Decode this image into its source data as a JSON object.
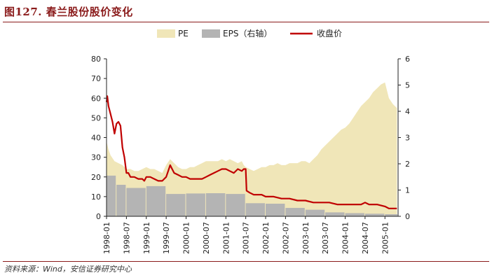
{
  "figure": {
    "title": "图127. 春兰股份股价变化",
    "source": "资料来源：Wind，安信证券研究中心"
  },
  "chart_data": {
    "type": "area",
    "title": "",
    "legend": {
      "placement": "top",
      "entries": [
        {
          "key": "pe",
          "label": "PE",
          "color": "#f0e6b8",
          "kind": "area"
        },
        {
          "key": "eps",
          "label": "EPS（右轴）",
          "color": "#b4b4b4",
          "kind": "bar"
        },
        {
          "key": "price",
          "label": "收盘价",
          "color": "#c00000",
          "kind": "line"
        }
      ]
    },
    "x_ticks": [
      "1998-01",
      "1998-07",
      "1999-01",
      "1999-07",
      "2000-01",
      "2000-07",
      "2001-01",
      "2001-07",
      "2002-01",
      "2002-07",
      "2003-01",
      "2003-07",
      "2004-01",
      "2004-07",
      "2005-01"
    ],
    "x_range": [
      1998.0,
      2005.33
    ],
    "left_axis": {
      "range": [
        0,
        80
      ],
      "ticks": [
        0,
        10,
        20,
        30,
        40,
        50,
        60,
        70,
        80
      ]
    },
    "right_axis": {
      "range": [
        0,
        6
      ],
      "ticks": [
        0,
        1,
        2,
        3,
        4,
        5,
        6
      ]
    },
    "series": [
      {
        "name": "PE",
        "axis": "left",
        "x": [
          1998.0,
          1998.05,
          1998.1,
          1998.2,
          1998.3,
          1998.4,
          1998.5,
          1998.6,
          1998.7,
          1998.8,
          1998.9,
          1999.0,
          1999.1,
          1999.2,
          1999.3,
          1999.4,
          1999.5,
          1999.6,
          1999.7,
          1999.8,
          1999.9,
          2000.0,
          2000.1,
          2000.2,
          2000.3,
          2000.4,
          2000.5,
          2000.6,
          2000.7,
          2000.8,
          2000.9,
          2001.0,
          2001.1,
          2001.2,
          2001.3,
          2001.4,
          2001.45,
          2001.5,
          2001.6,
          2001.7,
          2001.8,
          2001.9,
          2002.0,
          2002.1,
          2002.2,
          2002.3,
          2002.4,
          2002.5,
          2002.6,
          2002.7,
          2002.8,
          2002.9,
          2003.0,
          2003.1,
          2003.2,
          2003.3,
          2003.4,
          2003.5,
          2003.6,
          2003.7,
          2003.8,
          2003.9,
          2004.0,
          2004.1,
          2004.2,
          2004.3,
          2004.4,
          2004.5,
          2004.6,
          2004.7,
          2004.8,
          2004.9,
          2005.0,
          2005.1,
          2005.2,
          2005.3
        ],
        "values": [
          38,
          34,
          31,
          28,
          27,
          26,
          24,
          24,
          23,
          23,
          24,
          25,
          24,
          24,
          23,
          22,
          26,
          29,
          27,
          25,
          24,
          24,
          25,
          25,
          26,
          27,
          28,
          28,
          28,
          28,
          29,
          28,
          29,
          28,
          27,
          28,
          26,
          25,
          24,
          23,
          24,
          25,
          25,
          26,
          26,
          27,
          26,
          26,
          27,
          27,
          27,
          28,
          28,
          27,
          29,
          31,
          34,
          36,
          38,
          40,
          42,
          44,
          45,
          47,
          50,
          53,
          56,
          58,
          60,
          63,
          65,
          67,
          68,
          60,
          57,
          55
        ]
      },
      {
        "name": "EPS（右轴）",
        "axis": "right",
        "type": "bar",
        "x": [
          1998.0,
          1998.25,
          1998.5,
          1999.0,
          1999.5,
          2000.0,
          2000.5,
          2001.0,
          2001.5,
          2002.0,
          2002.5,
          2003.0,
          2003.5,
          2004.0,
          2004.5,
          2005.0
        ],
        "x_end": [
          1998.25,
          1998.5,
          1999.0,
          1999.5,
          2000.0,
          2000.5,
          2001.0,
          2001.5,
          2002.0,
          2002.5,
          2003.0,
          2003.5,
          2004.0,
          2004.5,
          2005.0,
          2005.33
        ],
        "values": [
          1.55,
          1.2,
          1.08,
          1.15,
          0.85,
          0.87,
          0.88,
          0.85,
          0.5,
          0.48,
          0.32,
          0.25,
          0.15,
          0.12,
          0.1,
          0.08
        ]
      },
      {
        "name": "收盘价",
        "axis": "left",
        "type": "line",
        "x": [
          1998.0,
          1998.02,
          1998.05,
          1998.1,
          1998.15,
          1998.2,
          1998.25,
          1998.3,
          1998.35,
          1998.4,
          1998.45,
          1998.5,
          1998.55,
          1998.6,
          1998.7,
          1998.8,
          1998.9,
          1998.95,
          1999.0,
          1999.1,
          1999.2,
          1999.3,
          1999.4,
          1999.5,
          1999.55,
          1999.6,
          1999.65,
          1999.7,
          1999.8,
          1999.9,
          2000.0,
          2000.1,
          2000.2,
          2000.3,
          2000.4,
          2000.5,
          2000.6,
          2000.7,
          2000.8,
          2000.9,
          2001.0,
          2001.1,
          2001.2,
          2001.3,
          2001.4,
          2001.45,
          2001.5,
          2001.52,
          2001.6,
          2001.7,
          2001.8,
          2001.9,
          2002.0,
          2002.2,
          2002.4,
          2002.5,
          2002.6,
          2002.8,
          2003.0,
          2003.2,
          2003.4,
          2003.6,
          2003.8,
          2004.0,
          2004.2,
          2004.4,
          2004.5,
          2004.6,
          2004.8,
          2005.0,
          2005.1,
          2005.2,
          2005.3
        ],
        "values": [
          58,
          61,
          56,
          52,
          48,
          42,
          47,
          48,
          46,
          35,
          30,
          22,
          22,
          20,
          20,
          19,
          19,
          18,
          20,
          20,
          19,
          18,
          18,
          20,
          23,
          26,
          24,
          22,
          21,
          20,
          20,
          19,
          19,
          19,
          19,
          20,
          21,
          22,
          23,
          24,
          24,
          23,
          22,
          24,
          23,
          24,
          24,
          13,
          12,
          11,
          11,
          11,
          10,
          10,
          9,
          9,
          9,
          8,
          8,
          7,
          7,
          7,
          6,
          6,
          6,
          6,
          7,
          6,
          6,
          5,
          4,
          4,
          4
        ]
      }
    ],
    "grid": false
  }
}
